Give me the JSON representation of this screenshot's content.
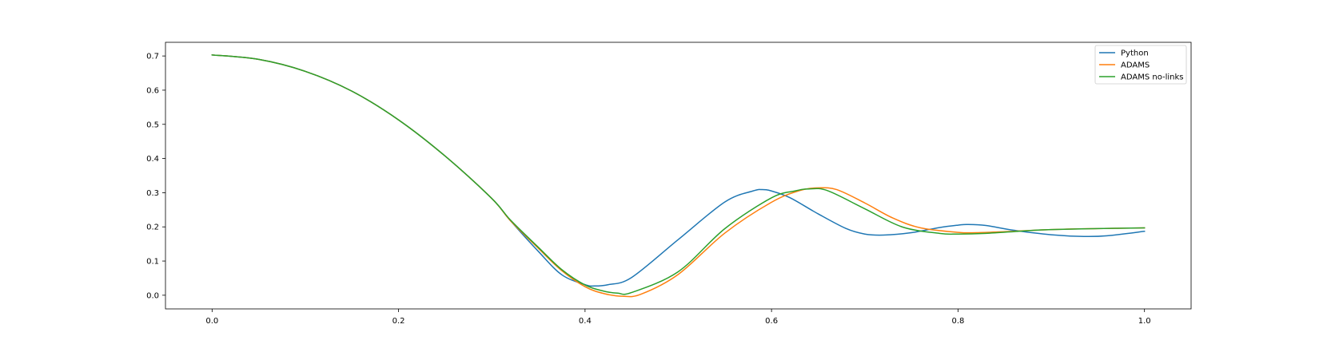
{
  "chart_data": {
    "type": "line",
    "title": "",
    "xlabel": "",
    "ylabel": "",
    "xlim": [
      -0.05,
      1.05
    ],
    "ylim": [
      -0.04,
      0.74
    ],
    "grid": false,
    "legend_position": "top-right",
    "x_ticks": [
      "0.0",
      "0.2",
      "0.4",
      "0.6",
      "0.8",
      "1.0"
    ],
    "y_ticks": [
      "0.0",
      "0.1",
      "0.2",
      "0.3",
      "0.4",
      "0.5",
      "0.6",
      "0.7"
    ],
    "series": [
      {
        "name": "Python",
        "color": "#1f77b4",
        "points": [
          [
            0.0,
            0.703
          ],
          [
            0.05,
            0.69
          ],
          [
            0.1,
            0.655
          ],
          [
            0.15,
            0.597
          ],
          [
            0.2,
            0.513
          ],
          [
            0.25,
            0.407
          ],
          [
            0.3,
            0.283
          ],
          [
            0.32,
            0.218
          ],
          [
            0.35,
            0.128
          ],
          [
            0.375,
            0.06
          ],
          [
            0.4,
            0.031
          ],
          [
            0.41,
            0.027
          ],
          [
            0.425,
            0.031
          ],
          [
            0.45,
            0.052
          ],
          [
            0.5,
            0.163
          ],
          [
            0.55,
            0.273
          ],
          [
            0.58,
            0.305
          ],
          [
            0.59,
            0.309
          ],
          [
            0.6,
            0.305
          ],
          [
            0.62,
            0.285
          ],
          [
            0.65,
            0.238
          ],
          [
            0.68,
            0.195
          ],
          [
            0.7,
            0.179
          ],
          [
            0.72,
            0.176
          ],
          [
            0.75,
            0.183
          ],
          [
            0.78,
            0.198
          ],
          [
            0.8,
            0.205
          ],
          [
            0.81,
            0.207
          ],
          [
            0.83,
            0.204
          ],
          [
            0.86,
            0.19
          ],
          [
            0.9,
            0.177
          ],
          [
            0.935,
            0.172
          ],
          [
            0.96,
            0.174
          ],
          [
            1.0,
            0.187
          ]
        ]
      },
      {
        "name": "ADAMS",
        "color": "#ff7f0e",
        "points": [
          [
            0.0,
            0.703
          ],
          [
            0.05,
            0.69
          ],
          [
            0.1,
            0.655
          ],
          [
            0.15,
            0.597
          ],
          [
            0.2,
            0.513
          ],
          [
            0.25,
            0.407
          ],
          [
            0.3,
            0.283
          ],
          [
            0.32,
            0.218
          ],
          [
            0.35,
            0.137
          ],
          [
            0.375,
            0.072
          ],
          [
            0.4,
            0.025
          ],
          [
            0.42,
            0.005
          ],
          [
            0.44,
            -0.003
          ],
          [
            0.46,
            0.003
          ],
          [
            0.5,
            0.061
          ],
          [
            0.55,
            0.182
          ],
          [
            0.6,
            0.272
          ],
          [
            0.63,
            0.306
          ],
          [
            0.65,
            0.314
          ],
          [
            0.67,
            0.309
          ],
          [
            0.7,
            0.27
          ],
          [
            0.73,
            0.226
          ],
          [
            0.76,
            0.197
          ],
          [
            0.8,
            0.184
          ],
          [
            0.82,
            0.183
          ],
          [
            0.85,
            0.186
          ],
          [
            0.9,
            0.192
          ],
          [
            0.95,
            0.195
          ],
          [
            1.0,
            0.197
          ]
        ]
      },
      {
        "name": "ADAMS no-links",
        "color": "#2ca02c",
        "points": [
          [
            0.0,
            0.703
          ],
          [
            0.05,
            0.69
          ],
          [
            0.1,
            0.655
          ],
          [
            0.15,
            0.597
          ],
          [
            0.2,
            0.513
          ],
          [
            0.25,
            0.407
          ],
          [
            0.3,
            0.283
          ],
          [
            0.32,
            0.22
          ],
          [
            0.35,
            0.14
          ],
          [
            0.375,
            0.075
          ],
          [
            0.4,
            0.03
          ],
          [
            0.42,
            0.012
          ],
          [
            0.435,
            0.006
          ],
          [
            0.45,
            0.008
          ],
          [
            0.5,
            0.069
          ],
          [
            0.55,
            0.195
          ],
          [
            0.6,
            0.285
          ],
          [
            0.625,
            0.305
          ],
          [
            0.64,
            0.311
          ],
          [
            0.66,
            0.306
          ],
          [
            0.7,
            0.253
          ],
          [
            0.74,
            0.2
          ],
          [
            0.78,
            0.181
          ],
          [
            0.8,
            0.179
          ],
          [
            0.83,
            0.181
          ],
          [
            0.87,
            0.188
          ],
          [
            0.9,
            0.192
          ],
          [
            0.95,
            0.195
          ],
          [
            1.0,
            0.197
          ]
        ]
      }
    ]
  }
}
